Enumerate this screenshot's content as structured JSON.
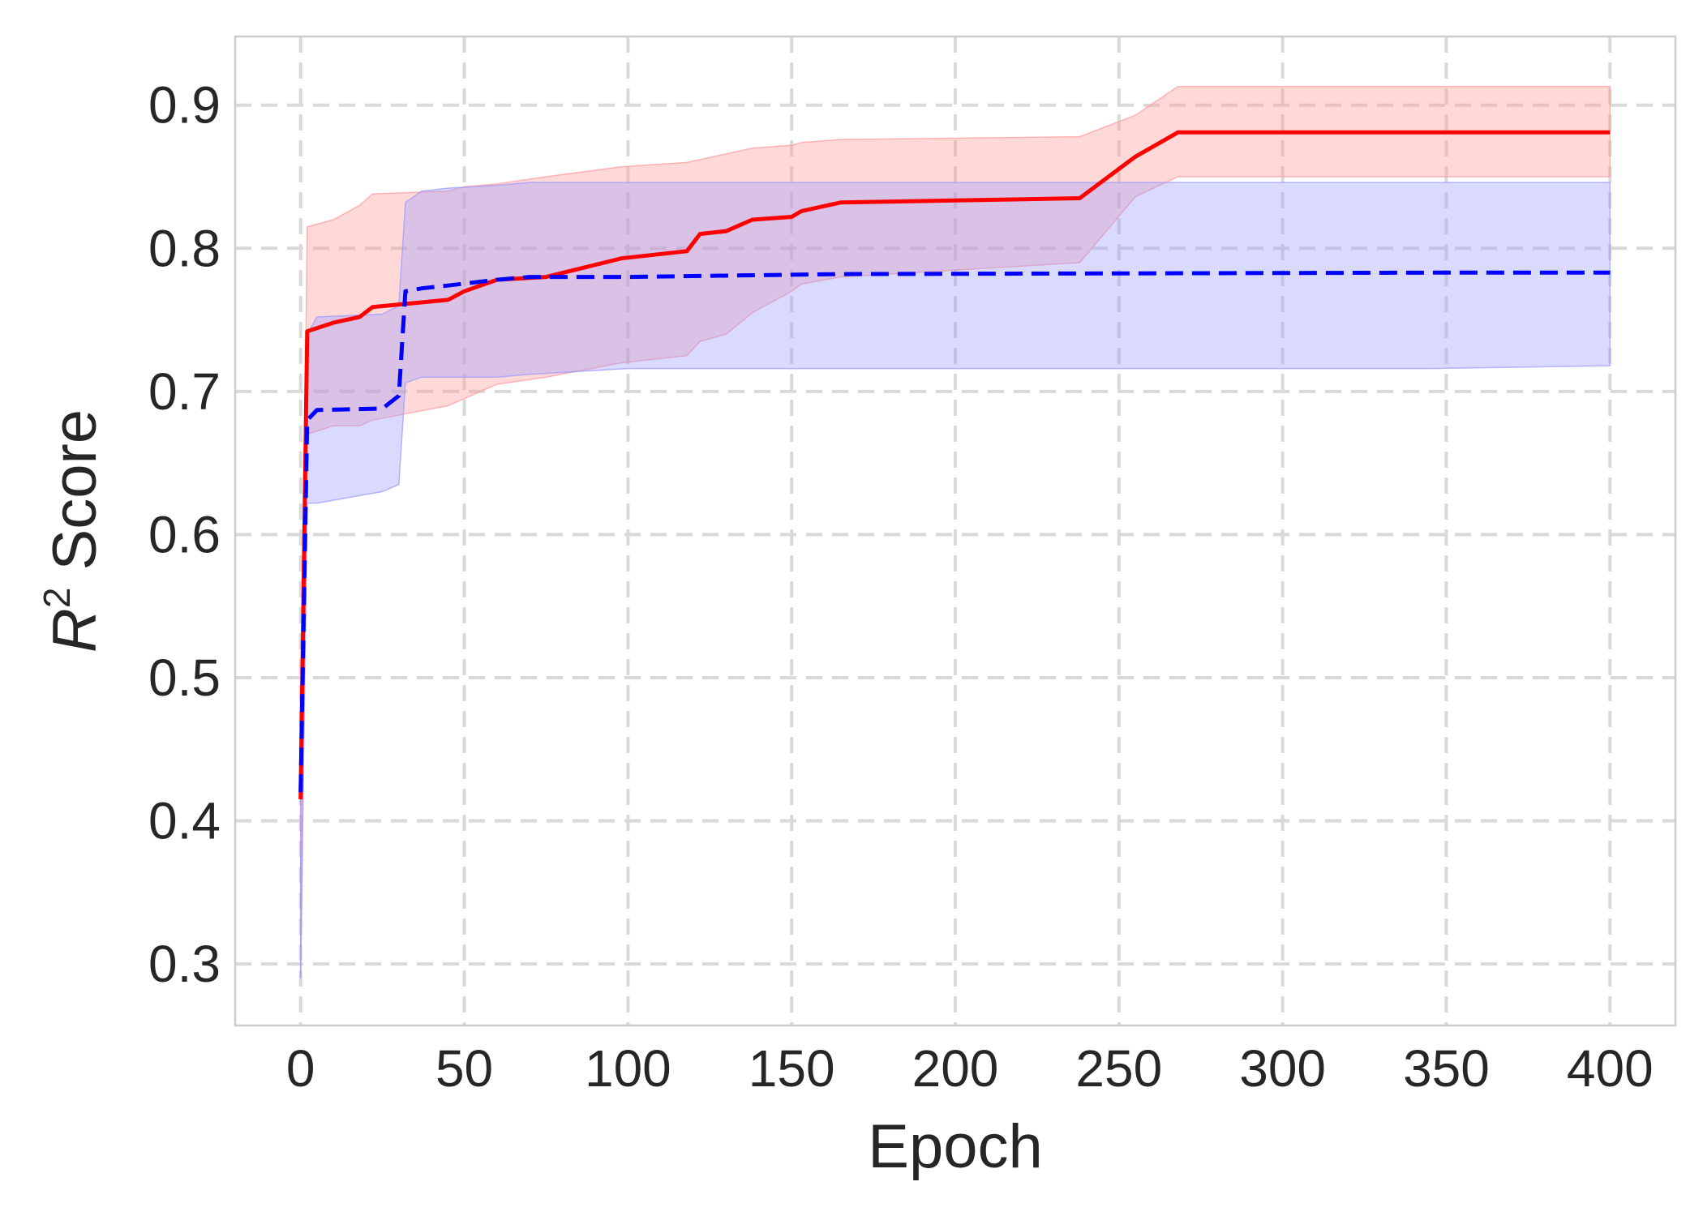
{
  "chart_data": {
    "type": "line",
    "title": "",
    "xlabel": "Epoch",
    "ylabel": {
      "base": "R",
      "sup": "2",
      "rest": " Score"
    },
    "xlim": [
      -20,
      420
    ],
    "ylim": [
      0.257,
      0.948
    ],
    "xticks": [
      0,
      50,
      100,
      150,
      200,
      250,
      300,
      350,
      400
    ],
    "yticks": [
      0.3,
      0.4,
      0.5,
      0.6,
      0.7,
      0.8,
      0.9
    ],
    "grid": true,
    "legend": "none",
    "colors": {
      "series_a": "#ff0000",
      "series_b": "#0000ff",
      "band_a": "#ff9999",
      "band_b": "#9999ff"
    },
    "series": [
      {
        "line_style": "solid",
        "color": "#ff0000",
        "x": [
          0,
          2,
          10,
          18,
          22,
          45,
          50,
          60,
          75,
          98,
          118,
          122,
          130,
          138,
          150,
          153,
          165,
          238,
          255,
          268,
          400
        ],
        "y": [
          0.415,
          0.742,
          0.748,
          0.752,
          0.759,
          0.764,
          0.77,
          0.778,
          0.78,
          0.793,
          0.798,
          0.81,
          0.812,
          0.82,
          0.822,
          0.826,
          0.832,
          0.835,
          0.864,
          0.881,
          0.881
        ],
        "upper": [
          0.415,
          0.815,
          0.82,
          0.83,
          0.838,
          0.84,
          0.843,
          0.845,
          0.85,
          0.857,
          0.86,
          0.862,
          0.866,
          0.87,
          0.872,
          0.874,
          0.876,
          0.878,
          0.893,
          0.913,
          0.913
        ],
        "lower": [
          0.29,
          0.67,
          0.676,
          0.676,
          0.68,
          0.69,
          0.695,
          0.705,
          0.71,
          0.72,
          0.725,
          0.735,
          0.74,
          0.755,
          0.77,
          0.775,
          0.78,
          0.79,
          0.836,
          0.85,
          0.85
        ]
      },
      {
        "line_style": "dashed",
        "color": "#0000ff",
        "x": [
          0,
          2,
          5,
          25,
          30,
          32,
          37,
          45,
          60,
          70,
          100,
          165,
          345,
          400
        ],
        "y": [
          0.42,
          0.68,
          0.687,
          0.688,
          0.697,
          0.77,
          0.772,
          0.774,
          0.778,
          0.78,
          0.78,
          0.782,
          0.783,
          0.783
        ],
        "upper": [
          0.42,
          0.74,
          0.752,
          0.754,
          0.76,
          0.832,
          0.84,
          0.842,
          0.844,
          0.846,
          0.846,
          0.846,
          0.846,
          0.846
        ],
        "lower": [
          0.29,
          0.622,
          0.622,
          0.63,
          0.635,
          0.706,
          0.71,
          0.71,
          0.71,
          0.712,
          0.716,
          0.716,
          0.716,
          0.718
        ]
      }
    ]
  }
}
